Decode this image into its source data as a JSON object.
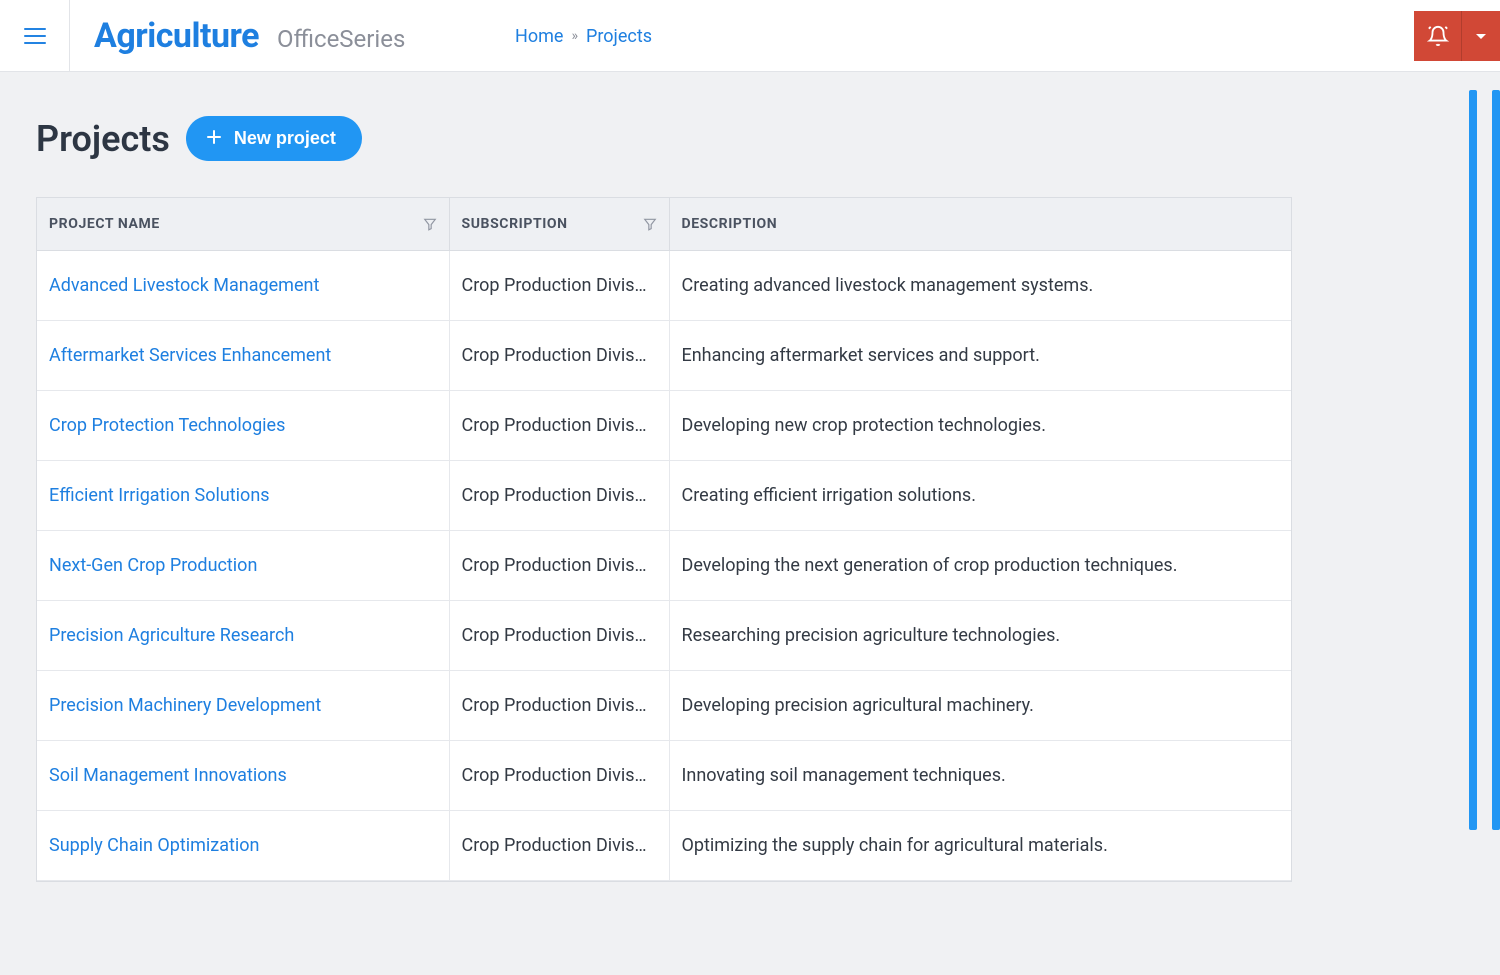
{
  "colors": {
    "primary": "#1e7fe0",
    "accent_button": "#2196f3",
    "danger": "#d14836",
    "page_bg": "#f0f1f3",
    "text_heading": "#2d3643",
    "text_body": "#333a44",
    "text_muted": "#8b8f99",
    "header_bg": "#eef0f3",
    "border": "#dadde2"
  },
  "header": {
    "brand_main": "Agriculture",
    "brand_sub": "OfficeSeries",
    "breadcrumbs": {
      "home_label": "Home",
      "separator": "»",
      "current_label": "Projects"
    }
  },
  "page": {
    "title": "Projects",
    "new_button_label": "New project"
  },
  "table": {
    "columns": {
      "name": "PROJECT NAME",
      "subscription": "SUBSCRIPTION",
      "description": "DESCRIPTION"
    },
    "rows": [
      {
        "name": "Advanced Livestock Management",
        "subscription": "Crop Production Divis…",
        "description": "Creating advanced livestock management systems."
      },
      {
        "name": "Aftermarket Services Enhancement",
        "subscription": "Crop Production Divis…",
        "description": "Enhancing aftermarket services and support."
      },
      {
        "name": "Crop Protection Technologies",
        "subscription": "Crop Production Divis…",
        "description": "Developing new crop protection technologies."
      },
      {
        "name": "Efficient Irrigation Solutions",
        "subscription": "Crop Production Divis…",
        "description": "Creating efficient irrigation solutions."
      },
      {
        "name": "Next-Gen Crop Production",
        "subscription": "Crop Production Divis…",
        "description": "Developing the next generation of crop production techniques."
      },
      {
        "name": "Precision Agriculture Research",
        "subscription": "Crop Production Divis…",
        "description": "Researching precision agriculture technologies."
      },
      {
        "name": "Precision Machinery Development",
        "subscription": "Crop Production Divis…",
        "description": "Developing precision agricultural machinery."
      },
      {
        "name": "Soil Management Innovations",
        "subscription": "Crop Production Divis…",
        "description": "Innovating soil management techniques."
      },
      {
        "name": "Supply Chain Optimization",
        "subscription": "Crop Production Divis…",
        "description": "Optimizing the supply chain for agricultural materials."
      }
    ]
  }
}
